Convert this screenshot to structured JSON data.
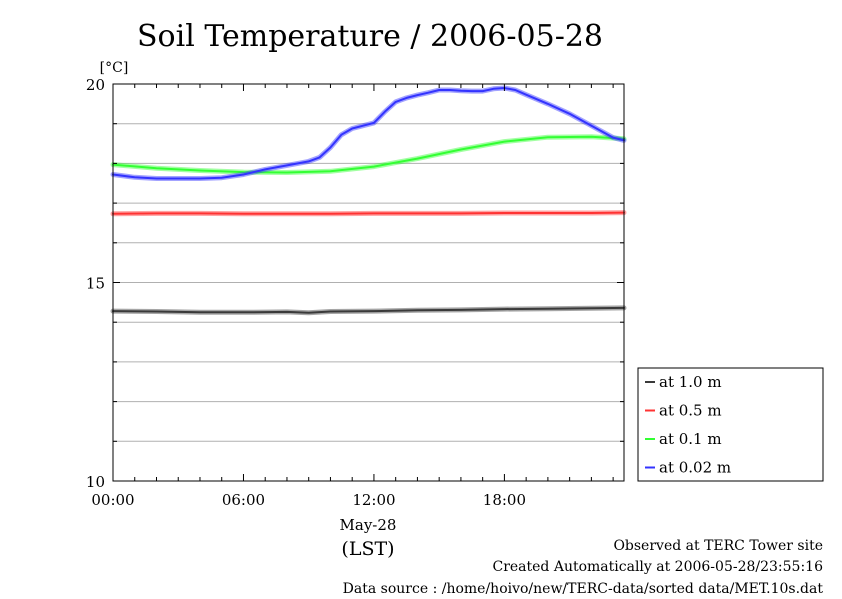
{
  "chart_data": {
    "type": "line",
    "title": "Soil Temperature / 2006-05-28",
    "ylabel": "[°C]",
    "xlabel": "(LST)",
    "x_date_label": "May-28",
    "ylim": [
      10,
      20
    ],
    "xlim": [
      0,
      23.5
    ],
    "yticks": [
      10,
      15,
      20
    ],
    "ytick_labels": [
      "10",
      "15",
      "20"
    ],
    "xticks": [
      0,
      6,
      12,
      18
    ],
    "xtick_labels": [
      "00:00",
      "06:00",
      "12:00",
      "18:00"
    ],
    "grid": true,
    "legend_position": "right",
    "series": [
      {
        "name": "at 1.0 m",
        "color": "#3a3a3a",
        "x": [
          0,
          2,
          4,
          6,
          8,
          9,
          10,
          12,
          14,
          16,
          18,
          20,
          22,
          23.5
        ],
        "y": [
          14.28,
          14.27,
          14.25,
          14.25,
          14.26,
          14.24,
          14.27,
          14.28,
          14.3,
          14.31,
          14.33,
          14.34,
          14.35,
          14.36
        ]
      },
      {
        "name": "at 0.5 m",
        "color": "#ff3333",
        "x": [
          0,
          2,
          4,
          6,
          8,
          10,
          12,
          14,
          16,
          18,
          20,
          22,
          23.5
        ],
        "y": [
          16.73,
          16.74,
          16.74,
          16.73,
          16.73,
          16.73,
          16.74,
          16.74,
          16.74,
          16.75,
          16.75,
          16.75,
          16.76
        ]
      },
      {
        "name": "at 0.1 m",
        "color": "#33ff33",
        "x": [
          0,
          2,
          4,
          6,
          8,
          10,
          12,
          14,
          16,
          18,
          20,
          22,
          23.5
        ],
        "y": [
          17.97,
          17.88,
          17.82,
          17.78,
          17.77,
          17.8,
          17.92,
          18.12,
          18.35,
          18.55,
          18.66,
          18.67,
          18.62
        ]
      },
      {
        "name": "at 0.02 m",
        "color": "#3333ff",
        "x": [
          0,
          1,
          2,
          3,
          4,
          5,
          6,
          7,
          8,
          9,
          9.5,
          10,
          10.5,
          11,
          11.5,
          12,
          12.5,
          13,
          13.5,
          14,
          14.5,
          15,
          15.5,
          16,
          16.5,
          17,
          17.5,
          18,
          18.5,
          19,
          20,
          21,
          22,
          23,
          23.5
        ],
        "y": [
          17.72,
          17.65,
          17.62,
          17.62,
          17.62,
          17.64,
          17.72,
          17.85,
          17.95,
          18.05,
          18.15,
          18.4,
          18.72,
          18.88,
          18.95,
          19.02,
          19.3,
          19.55,
          19.65,
          19.72,
          19.78,
          19.85,
          19.85,
          19.83,
          19.82,
          19.82,
          19.88,
          19.9,
          19.85,
          19.73,
          19.5,
          19.25,
          18.95,
          18.65,
          18.58
        ]
      }
    ],
    "footer": [
      "Observed at TERC Tower site",
      "Created Automatically at 2006-05-28/23:55:16",
      "Data source : /home/hoivo/new/TERC-data/sorted  data/MET.10s.dat"
    ]
  }
}
